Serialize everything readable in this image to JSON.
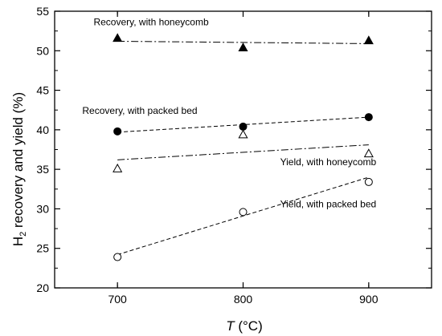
{
  "chart_data": {
    "type": "scatter",
    "xlabel": {
      "italic": "T",
      "rest": " (°C)"
    },
    "ylabel": {
      "prefix": "H",
      "sub": "2",
      "rest": " recovery and yield (%)"
    },
    "xlim": [
      650,
      950
    ],
    "ylim": [
      20,
      55
    ],
    "xticks": [
      700,
      800,
      900
    ],
    "yticks": [
      20,
      25,
      30,
      35,
      40,
      45,
      50,
      55
    ],
    "grid": false,
    "legend": "none",
    "series": [
      {
        "name": "Recovery, with honeycomb",
        "marker": "triangle",
        "filled": true,
        "line": "dashdot",
        "x": [
          700,
          800,
          900
        ],
        "y": [
          51.6,
          50.4,
          51.3
        ],
        "fit": [
          [
            700,
            51.2
          ],
          [
            900,
            50.9
          ]
        ]
      },
      {
        "name": "Recovery, with packed bed",
        "marker": "circle",
        "filled": true,
        "line": "dashed",
        "x": [
          700,
          800,
          900
        ],
        "y": [
          39.8,
          40.4,
          41.6
        ],
        "fit": [
          [
            700,
            39.7
          ],
          [
            900,
            41.6
          ]
        ]
      },
      {
        "name": "Yield, with honeycomb",
        "marker": "triangle",
        "filled": false,
        "line": "dashdot",
        "x": [
          700,
          800,
          900
        ],
        "y": [
          35.1,
          39.4,
          37.0
        ],
        "fit": [
          [
            700,
            36.2
          ],
          [
            900,
            38.1
          ]
        ]
      },
      {
        "name": "Yield, with packed bed",
        "marker": "circle",
        "filled": false,
        "line": "dashed",
        "x": [
          700,
          800,
          900
        ],
        "y": [
          23.9,
          29.6,
          33.4
        ],
        "fit": [
          [
            700,
            24.2
          ],
          [
            900,
            34.0
          ]
        ]
      }
    ]
  }
}
